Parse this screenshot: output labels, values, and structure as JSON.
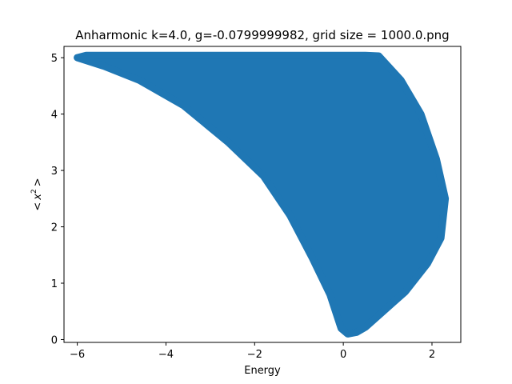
{
  "chart_data": {
    "type": "scatter",
    "title": "Anharmonic  k=4.0, g=-0.0799999982, grid size = 1000.0.png",
    "xlabel": "Energy",
    "ylabel_parts": {
      "open": "<",
      "var": "x",
      "exp": "2",
      "close": ">"
    },
    "xlim": [
      -6.3,
      2.65
    ],
    "ylim": [
      -0.05,
      5.2
    ],
    "xticks": [
      -6,
      -4,
      -2,
      0,
      2
    ],
    "yticks": [
      0,
      1,
      2,
      3,
      4,
      5
    ],
    "grid": false,
    "legend": "none",
    "series_color": "#1f77b4",
    "region_outline": {
      "upper": [
        [
          -6.0,
          5.0
        ],
        [
          -5.8,
          5.04
        ],
        [
          0.5,
          5.04
        ],
        [
          0.8,
          5.03
        ]
      ],
      "right": [
        [
          0.8,
          5.03
        ],
        [
          1.3,
          4.6
        ],
        [
          1.75,
          4.0
        ],
        [
          2.1,
          3.2
        ],
        [
          2.3,
          2.5
        ],
        [
          2.2,
          1.8
        ],
        [
          1.9,
          1.35
        ],
        [
          1.4,
          0.85
        ],
        [
          0.9,
          0.5
        ],
        [
          0.5,
          0.22
        ],
        [
          0.3,
          0.13
        ]
      ],
      "bottom": [
        [
          0.3,
          0.13
        ],
        [
          0.1,
          0.1
        ],
        [
          -0.05,
          0.2
        ]
      ],
      "left": [
        [
          -0.05,
          0.2
        ],
        [
          -0.3,
          0.8
        ],
        [
          -0.7,
          1.45
        ],
        [
          -1.2,
          2.2
        ],
        [
          -1.8,
          2.9
        ],
        [
          -2.6,
          3.5
        ],
        [
          -3.6,
          4.15
        ],
        [
          -4.6,
          4.6
        ],
        [
          -5.4,
          4.85
        ],
        [
          -6.0,
          5.0
        ]
      ]
    }
  }
}
